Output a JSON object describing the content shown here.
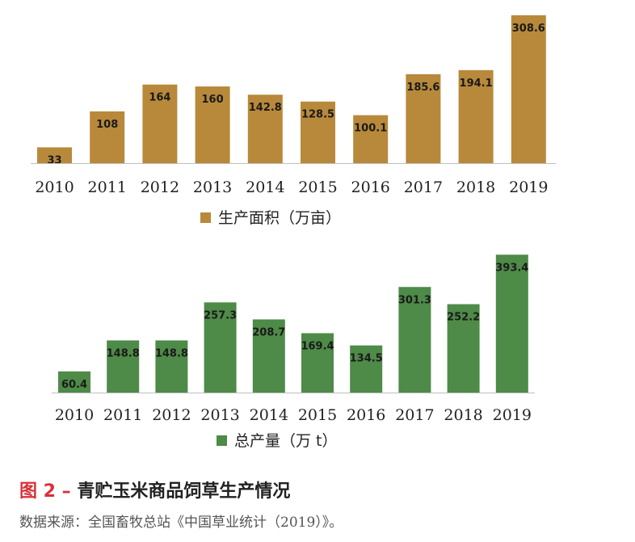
{
  "chart_data": [
    {
      "type": "bar",
      "categories": [
        "2010",
        "2011",
        "2012",
        "2013",
        "2014",
        "2015",
        "2016",
        "2017",
        "2018",
        "2019"
      ],
      "series": [
        {
          "name": "生产面积（万亩）",
          "values": [
            33,
            108,
            164,
            160,
            142.8,
            128.5,
            100.1,
            185.6,
            194.1,
            308.6
          ],
          "labels": [
            "33",
            "108",
            "164",
            "160",
            "142.8",
            "128.5",
            "100.1",
            "185.6",
            "194.1",
            "308.6"
          ],
          "color": "#b8893a"
        }
      ],
      "legend_position": "bottom",
      "grid": false
    },
    {
      "type": "bar",
      "categories": [
        "2010",
        "2011",
        "2012",
        "2013",
        "2014",
        "2015",
        "2016",
        "2017",
        "2018",
        "2019"
      ],
      "series": [
        {
          "name": "总产量（万 t）",
          "values": [
            60.4,
            148.8,
            148.8,
            257.3,
            208.7,
            169.4,
            134.5,
            301.3,
            252.2,
            393.4
          ],
          "labels": [
            "60.4",
            "148.8",
            "148.8",
            "257.3",
            "208.7",
            "169.4",
            "134.5",
            "301.3",
            "252.2",
            "393.4"
          ],
          "color": "#4e8a48"
        }
      ],
      "legend_position": "bottom",
      "grid": false
    }
  ],
  "caption": {
    "figure_number": "图 2 –",
    "title": "青贮玉米商品饲草生产情况"
  },
  "source": "数据来源：全国畜牧总站《中国草业统计（2019）》。"
}
